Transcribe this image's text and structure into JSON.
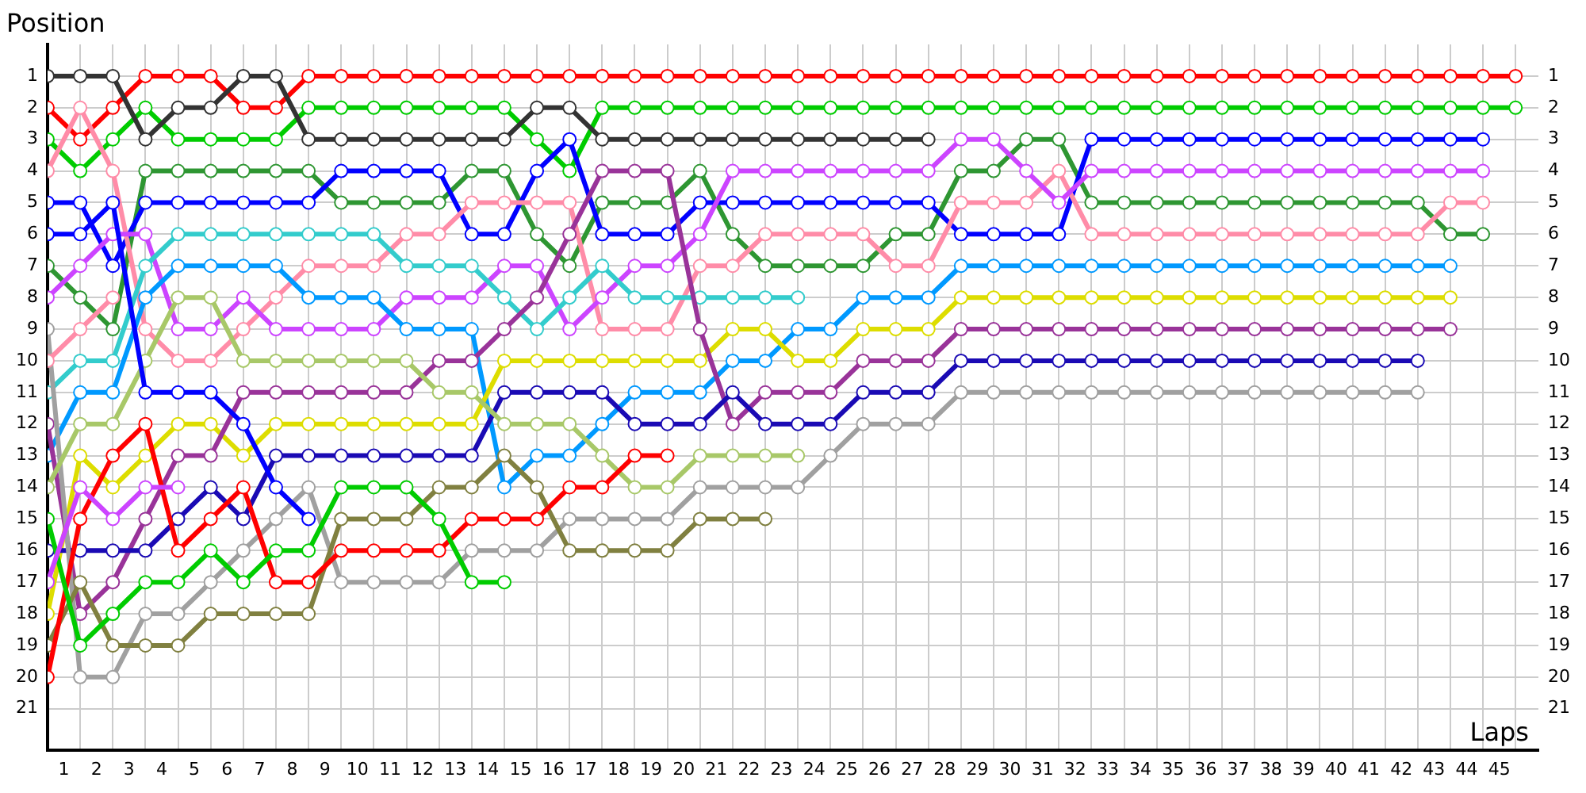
{
  "chart_data": {
    "type": "line",
    "ylabel": "Position",
    "xlabel": "Laps",
    "legend": false,
    "grid": true,
    "marker": "circle",
    "line_style": "solid",
    "x": [
      0,
      1,
      2,
      3,
      4,
      5,
      6,
      7,
      8,
      9,
      10,
      11,
      12,
      13,
      14,
      15,
      16,
      17,
      18,
      19,
      20,
      21,
      22,
      23,
      24,
      25,
      26,
      27,
      28,
      29,
      30,
      31,
      32,
      33,
      34,
      35,
      36,
      37,
      38,
      39,
      40,
      41,
      42,
      43,
      44,
      45
    ],
    "xlim": [
      0,
      45.7
    ],
    "xticks": [
      {
        "value": 0,
        "label": null
      },
      {
        "value": 0.5,
        "label": "1"
      },
      {
        "value": 1,
        "label": null
      },
      {
        "value": 1.5,
        "label": "2"
      },
      {
        "value": 2,
        "label": null
      },
      {
        "value": 2.5,
        "label": "3"
      },
      {
        "value": 3,
        "label": null
      },
      {
        "value": 3.5,
        "label": "4"
      },
      {
        "value": 4,
        "label": null
      },
      {
        "value": 4.5,
        "label": "5"
      },
      {
        "value": 5,
        "label": null
      },
      {
        "value": 5.5,
        "label": "6"
      },
      {
        "value": 6,
        "label": null
      },
      {
        "value": 6.5,
        "label": "7"
      },
      {
        "value": 7,
        "label": null
      },
      {
        "value": 7.5,
        "label": "8"
      },
      {
        "value": 8,
        "label": null
      },
      {
        "value": 8.5,
        "label": "9"
      },
      {
        "value": 9,
        "label": null
      },
      {
        "value": 9.5,
        "label": "10"
      },
      {
        "value": 10,
        "label": null
      },
      {
        "value": 10.5,
        "label": "11"
      },
      {
        "value": 11,
        "label": null
      },
      {
        "value": 11.5,
        "label": "12"
      },
      {
        "value": 12,
        "label": null
      },
      {
        "value": 12.5,
        "label": "13"
      },
      {
        "value": 13,
        "label": null
      },
      {
        "value": 13.5,
        "label": "14"
      },
      {
        "value": 14,
        "label": null
      },
      {
        "value": 14.5,
        "label": "15"
      },
      {
        "value": 15,
        "label": null
      },
      {
        "value": 15.5,
        "label": "16"
      },
      {
        "value": 16,
        "label": null
      },
      {
        "value": 16.5,
        "label": "17"
      },
      {
        "value": 17,
        "label": null
      },
      {
        "value": 17.5,
        "label": "18"
      },
      {
        "value": 18,
        "label": null
      },
      {
        "value": 18.5,
        "label": "19"
      },
      {
        "value": 19,
        "label": null
      },
      {
        "value": 19.5,
        "label": "20"
      },
      {
        "value": 20,
        "label": null
      },
      {
        "value": 20.5,
        "label": "21"
      },
      {
        "value": 21,
        "label": null
      },
      {
        "value": 21.5,
        "label": "22"
      },
      {
        "value": 22,
        "label": null
      },
      {
        "value": 22.5,
        "label": "23"
      },
      {
        "value": 23,
        "label": null
      },
      {
        "value": 23.5,
        "label": "24"
      },
      {
        "value": 24,
        "label": null
      },
      {
        "value": 24.5,
        "label": "25"
      },
      {
        "value": 25,
        "label": null
      },
      {
        "value": 25.5,
        "label": "26"
      },
      {
        "value": 26,
        "label": null
      },
      {
        "value": 26.5,
        "label": "27"
      },
      {
        "value": 27,
        "label": null
      },
      {
        "value": 27.5,
        "label": "28"
      },
      {
        "value": 28,
        "label": null
      },
      {
        "value": 28.5,
        "label": "29"
      },
      {
        "value": 29,
        "label": null
      },
      {
        "value": 29.5,
        "label": "30"
      },
      {
        "value": 30,
        "label": null
      },
      {
        "value": 30.5,
        "label": "31"
      },
      {
        "value": 31,
        "label": null
      },
      {
        "value": 31.5,
        "label": "32"
      },
      {
        "value": 32,
        "label": null
      },
      {
        "value": 32.5,
        "label": "33"
      },
      {
        "value": 33,
        "label": null
      },
      {
        "value": 33.5,
        "label": "34"
      },
      {
        "value": 34,
        "label": null
      },
      {
        "value": 34.5,
        "label": "35"
      },
      {
        "value": 35,
        "label": null
      },
      {
        "value": 35.5,
        "label": "36"
      },
      {
        "value": 36,
        "label": null
      },
      {
        "value": 36.5,
        "label": "37"
      },
      {
        "value": 37,
        "label": null
      },
      {
        "value": 37.5,
        "label": "38"
      },
      {
        "value": 38,
        "label": null
      },
      {
        "value": 38.5,
        "label": "39"
      },
      {
        "value": 39,
        "label": null
      },
      {
        "value": 39.5,
        "label": "40"
      },
      {
        "value": 40,
        "label": null
      },
      {
        "value": 40.5,
        "label": "41"
      },
      {
        "value": 41,
        "label": null
      },
      {
        "value": 41.5,
        "label": "42"
      },
      {
        "value": 42,
        "label": null
      },
      {
        "value": 42.5,
        "label": "43"
      },
      {
        "value": 43,
        "label": null
      },
      {
        "value": 43.5,
        "label": "44"
      },
      {
        "value": 44,
        "label": null
      },
      {
        "value": 44.5,
        "label": "45"
      },
      {
        "value": 45,
        "label": null
      }
    ],
    "ylim": [
      22.3,
      0
    ],
    "yticks": [
      1,
      2,
      3,
      4,
      5,
      6,
      7,
      8,
      9,
      10,
      11,
      12,
      13,
      14,
      15,
      16,
      17,
      18,
      19,
      20,
      21
    ],
    "y2lim": [
      22.3,
      0
    ],
    "y2ticks": [
      1,
      2,
      3,
      4,
      5,
      6,
      7,
      8,
      9,
      10,
      11,
      12,
      13,
      14,
      15,
      16,
      17,
      18,
      19,
      20,
      21
    ],
    "series": [
      {
        "color": "#ff0000",
        "values": [
          2,
          3,
          2,
          1,
          1,
          1,
          2,
          2,
          1,
          1,
          1,
          1,
          1,
          1,
          1,
          1,
          1,
          1,
          1,
          1,
          1,
          1,
          1,
          1,
          1,
          1,
          1,
          1,
          1,
          1,
          1,
          1,
          1,
          1,
          1,
          1,
          1,
          1,
          1,
          1,
          1,
          1,
          1,
          1,
          1,
          1
        ]
      },
      {
        "color": "#00cc00",
        "values": [
          3,
          4,
          3,
          2,
          3,
          3,
          3,
          3,
          2,
          2,
          2,
          2,
          2,
          2,
          2,
          3,
          4,
          2,
          2,
          2,
          2,
          2,
          2,
          2,
          2,
          2,
          2,
          2,
          2,
          2,
          2,
          2,
          2,
          2,
          2,
          2,
          2,
          2,
          2,
          2,
          2,
          2,
          2,
          2,
          2,
          2
        ]
      },
      {
        "color": "#333333",
        "values": [
          1,
          1,
          1,
          3,
          2,
          2,
          1,
          1,
          3,
          3,
          3,
          3,
          3,
          3,
          3,
          2,
          2,
          3,
          3,
          3,
          3,
          3,
          3,
          3,
          3,
          3,
          3,
          3,
          null,
          null,
          null,
          null,
          null,
          null,
          null,
          null,
          null,
          null,
          null,
          null,
          null,
          null,
          null,
          null,
          null,
          null
        ]
      },
      {
        "color": "#2e9632",
        "values": [
          7,
          8,
          9,
          4,
          4,
          4,
          4,
          4,
          4,
          5,
          5,
          5,
          5,
          4,
          4,
          6,
          7,
          5,
          5,
          5,
          4,
          6,
          7,
          7,
          7,
          7,
          6,
          6,
          4,
          4,
          3,
          3,
          5,
          5,
          5,
          5,
          5,
          5,
          5,
          5,
          5,
          5,
          5,
          6,
          6,
          null
        ]
      },
      {
        "color": "#0000ff",
        "values": [
          5,
          5,
          7,
          5,
          5,
          5,
          5,
          5,
          5,
          4,
          4,
          4,
          4,
          6,
          6,
          4,
          3,
          6,
          6,
          6,
          5,
          5,
          5,
          5,
          5,
          5,
          5,
          5,
          6,
          6,
          6,
          6,
          3,
          3,
          3,
          3,
          3,
          3,
          3,
          3,
          3,
          3,
          3,
          3,
          3,
          null
        ]
      },
      {
        "color": "#ff8ca8",
        "values": [
          4,
          2,
          4,
          9,
          10,
          10,
          9,
          8,
          7,
          7,
          7,
          6,
          6,
          5,
          5,
          5,
          5,
          9,
          9,
          9,
          7,
          7,
          6,
          6,
          6,
          6,
          7,
          7,
          5,
          5,
          5,
          4,
          6,
          6,
          6,
          6,
          6,
          6,
          6,
          6,
          6,
          6,
          6,
          5,
          5,
          null
        ]
      },
      {
        "color": "#cc44ff",
        "values": [
          8,
          7,
          6,
          6,
          9,
          9,
          8,
          9,
          9,
          9,
          9,
          8,
          8,
          8,
          7,
          7,
          9,
          8,
          7,
          7,
          6,
          4,
          4,
          4,
          4,
          4,
          4,
          4,
          3,
          3,
          4,
          5,
          4,
          4,
          4,
          4,
          4,
          4,
          4,
          4,
          4,
          4,
          4,
          4,
          4,
          null
        ]
      },
      {
        "color": "#33cccc",
        "values": [
          11,
          10,
          10,
          7,
          6,
          6,
          6,
          6,
          6,
          6,
          6,
          7,
          7,
          7,
          8,
          9,
          8,
          7,
          8,
          8,
          8,
          8,
          8,
          8,
          null,
          null,
          null,
          null,
          null,
          null,
          null,
          null,
          null,
          null,
          null,
          null,
          null,
          null,
          null,
          null,
          null,
          null,
          null,
          null,
          null,
          null
        ]
      },
      {
        "color": "#0099ff",
        "values": [
          13,
          11,
          11,
          8,
          7,
          7,
          7,
          7,
          8,
          8,
          8,
          9,
          9,
          9,
          14,
          13,
          13,
          12,
          11,
          11,
          11,
          10,
          10,
          9,
          9,
          8,
          8,
          8,
          7,
          7,
          7,
          7,
          7,
          7,
          7,
          7,
          7,
          7,
          7,
          7,
          7,
          7,
          7,
          7,
          null,
          null
        ]
      },
      {
        "color": "#dddd00",
        "values": [
          18,
          13,
          14,
          13,
          12,
          12,
          13,
          12,
          12,
          12,
          12,
          12,
          12,
          12,
          10,
          10,
          10,
          10,
          10,
          10,
          10,
          9,
          9,
          10,
          10,
          9,
          9,
          9,
          8,
          8,
          8,
          8,
          8,
          8,
          8,
          8,
          8,
          8,
          8,
          8,
          8,
          8,
          8,
          8,
          null,
          null
        ]
      },
      {
        "color": "#993399",
        "values": [
          12,
          18,
          17,
          15,
          13,
          13,
          11,
          11,
          11,
          11,
          11,
          11,
          10,
          10,
          9,
          8,
          6,
          4,
          4,
          4,
          9,
          12,
          11,
          11,
          11,
          10,
          10,
          10,
          9,
          9,
          9,
          9,
          9,
          9,
          9,
          9,
          9,
          9,
          9,
          9,
          9,
          9,
          9,
          9,
          null,
          null
        ]
      },
      {
        "color": "#1a0ab4",
        "values": [
          16,
          16,
          16,
          16,
          15,
          14,
          15,
          13,
          13,
          13,
          13,
          13,
          13,
          13,
          11,
          11,
          11,
          11,
          12,
          12,
          12,
          11,
          12,
          12,
          12,
          11,
          11,
          11,
          10,
          10,
          10,
          10,
          10,
          10,
          10,
          10,
          10,
          10,
          10,
          10,
          10,
          10,
          10,
          null,
          null,
          null
        ]
      },
      {
        "color": "#a0a0a0",
        "values": [
          9,
          20,
          20,
          18,
          18,
          17,
          16,
          15,
          14,
          17,
          17,
          17,
          17,
          16,
          16,
          16,
          15,
          15,
          15,
          15,
          14,
          14,
          14,
          14,
          13,
          12,
          12,
          12,
          11,
          11,
          11,
          11,
          11,
          11,
          11,
          11,
          11,
          11,
          11,
          11,
          11,
          11,
          11,
          null,
          null,
          null
        ]
      },
      {
        "color": "#a8c868",
        "values": [
          14,
          12,
          12,
          10,
          8,
          8,
          10,
          10,
          10,
          10,
          10,
          10,
          11,
          11,
          12,
          12,
          12,
          13,
          14,
          14,
          13,
          13,
          13,
          13,
          null,
          null,
          null,
          null,
          null,
          null,
          null,
          null,
          null,
          null,
          null,
          null,
          null,
          null,
          null,
          null,
          null,
          null,
          null,
          null,
          null,
          null
        ]
      },
      {
        "color": "#808040",
        "values": [
          19,
          17,
          19,
          19,
          19,
          18,
          18,
          18,
          18,
          15,
          15,
          15,
          14,
          14,
          13,
          14,
          16,
          16,
          16,
          16,
          15,
          15,
          15,
          null,
          null,
          null,
          null,
          null,
          null,
          null,
          null,
          null,
          null,
          null,
          null,
          null,
          null,
          null,
          null,
          null,
          null,
          null,
          null,
          null,
          null,
          null
        ]
      },
      {
        "color": "#ff0000",
        "values": [
          20,
          15,
          13,
          12,
          16,
          15,
          14,
          17,
          17,
          16,
          16,
          16,
          16,
          15,
          15,
          15,
          14,
          14,
          13,
          13,
          null,
          null,
          null,
          null,
          null,
          null,
          null,
          null,
          null,
          null,
          null,
          null,
          null,
          null,
          null,
          null,
          null,
          null,
          null,
          null,
          null,
          null,
          null,
          null,
          null,
          null
        ]
      },
      {
        "color": "#00cc00",
        "values": [
          15,
          19,
          18,
          17,
          17,
          16,
          17,
          16,
          16,
          14,
          14,
          14,
          15,
          17,
          17,
          null,
          null,
          null,
          null,
          null,
          null,
          null,
          null,
          null,
          null,
          null,
          null,
          null,
          null,
          null,
          null,
          null,
          null,
          null,
          null,
          null,
          null,
          null,
          null,
          null,
          null,
          null,
          null,
          null,
          null,
          null
        ]
      },
      {
        "color": "#0000ff",
        "values": [
          6,
          6,
          5,
          11,
          11,
          11,
          12,
          14,
          15,
          null,
          null,
          null,
          null,
          null,
          null,
          null,
          null,
          null,
          null,
          null,
          null,
          null,
          null,
          null,
          null,
          null,
          null,
          null,
          null,
          null,
          null,
          null,
          null,
          null,
          null,
          null,
          null,
          null,
          null,
          null,
          null,
          null,
          null,
          null,
          null,
          null
        ]
      },
      {
        "color": "#cc44ff",
        "values": [
          17,
          14,
          15,
          14,
          14,
          null,
          null,
          null,
          null,
          null,
          null,
          null,
          null,
          null,
          null,
          null,
          null,
          null,
          null,
          null,
          null,
          null,
          null,
          null,
          null,
          null,
          null,
          null,
          null,
          null,
          null,
          null,
          null,
          null,
          null,
          null,
          null,
          null,
          null,
          null,
          null,
          null,
          null,
          null,
          null,
          null
        ]
      },
      {
        "color": "#ff8ca8",
        "values": [
          10,
          9,
          8,
          null,
          null,
          null,
          null,
          null,
          null,
          null,
          null,
          null,
          null,
          null,
          null,
          null,
          null,
          null,
          null,
          null,
          null,
          null,
          null,
          null,
          null,
          null,
          null,
          null,
          null,
          null,
          null,
          null,
          null,
          null,
          null,
          null,
          null,
          null,
          null,
          null,
          null,
          null,
          null,
          null,
          null,
          null
        ]
      }
    ]
  }
}
